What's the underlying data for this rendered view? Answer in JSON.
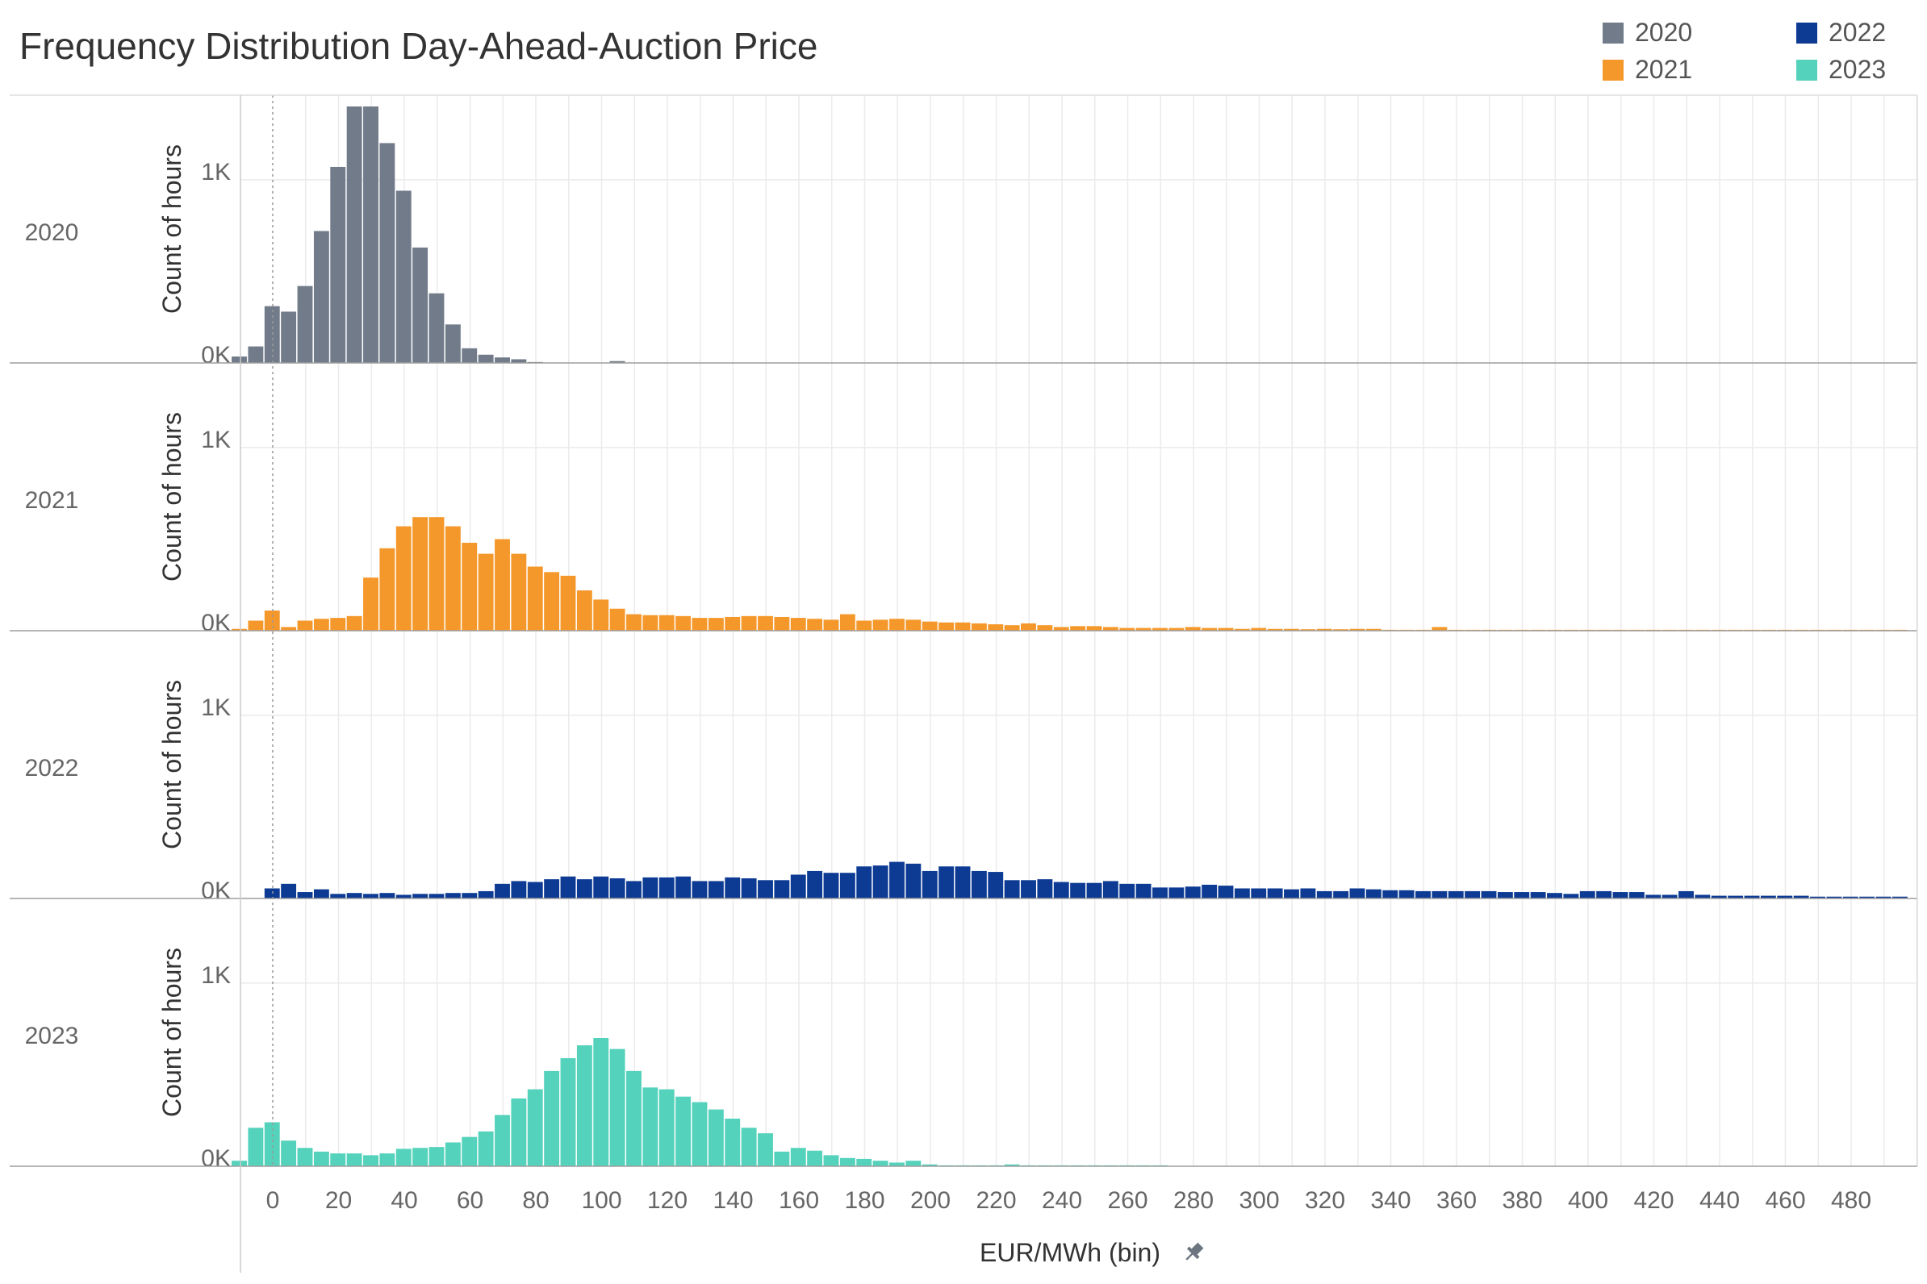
{
  "title": "Frequency Distribution Day-Ahead-Auction Price",
  "legend": [
    {
      "label": "2020",
      "color": "#727b8a"
    },
    {
      "label": "2021",
      "color": "#f5982b"
    },
    {
      "label": "2022",
      "color": "#0d3b94"
    },
    {
      "label": "2023",
      "color": "#54d2bb"
    }
  ],
  "chart_data": {
    "type": "bar",
    "title": "Frequency Distribution Day-Ahead-Auction Price",
    "xlabel": "EUR/MWh (bin)",
    "ylabel": "Count of hours",
    "bin_width": 5,
    "x_ticks": [
      0,
      20,
      40,
      60,
      80,
      100,
      120,
      140,
      160,
      180,
      200,
      220,
      240,
      260,
      280,
      300,
      320,
      340,
      360,
      380,
      400,
      420,
      440,
      460,
      480
    ],
    "y_ticks": [
      "0K",
      "1K"
    ],
    "y_tick_values": [
      0,
      1000
    ],
    "ylim": [
      0,
      1400
    ],
    "grid": true,
    "legend_position": "top-right",
    "series": [
      {
        "name": "2020",
        "color": "#727b8a",
        "x": [
          -10,
          -5,
          0,
          5,
          10,
          15,
          20,
          25,
          30,
          35,
          40,
          45,
          50,
          55,
          60,
          65,
          70,
          75,
          80,
          105
        ],
        "values": [
          35,
          90,
          310,
          280,
          420,
          720,
          1070,
          1400,
          1400,
          1200,
          940,
          630,
          380,
          210,
          80,
          45,
          30,
          20,
          5,
          10
        ]
      },
      {
        "name": "2021",
        "color": "#f5982b",
        "x": [
          -10,
          -5,
          0,
          5,
          10,
          15,
          20,
          25,
          30,
          35,
          40,
          45,
          50,
          55,
          60,
          65,
          70,
          75,
          80,
          85,
          90,
          95,
          100,
          105,
          110,
          115,
          120,
          125,
          130,
          135,
          140,
          145,
          150,
          155,
          160,
          165,
          170,
          175,
          180,
          185,
          190,
          195,
          200,
          205,
          210,
          215,
          220,
          225,
          230,
          235,
          240,
          245,
          250,
          255,
          260,
          265,
          270,
          275,
          280,
          285,
          290,
          295,
          300,
          305,
          310,
          315,
          320,
          325,
          330,
          335,
          340,
          345,
          350,
          355,
          360,
          365,
          370,
          375,
          380,
          385,
          390,
          395,
          400,
          405,
          410,
          415,
          420,
          425,
          430,
          435,
          440,
          445,
          450,
          455,
          460,
          465,
          470,
          475,
          480,
          485,
          490,
          495
        ],
        "values": [
          10,
          55,
          110,
          20,
          55,
          65,
          70,
          80,
          290,
          450,
          570,
          620,
          620,
          570,
          480,
          420,
          500,
          420,
          350,
          320,
          300,
          220,
          170,
          120,
          90,
          85,
          85,
          80,
          70,
          70,
          75,
          80,
          80,
          75,
          70,
          65,
          60,
          90,
          55,
          60,
          65,
          60,
          50,
          45,
          45,
          40,
          35,
          30,
          40,
          30,
          20,
          25,
          25,
          20,
          15,
          15,
          15,
          15,
          20,
          15,
          15,
          10,
          15,
          10,
          10,
          8,
          10,
          8,
          10,
          10,
          5,
          5,
          5,
          20,
          5,
          5,
          5,
          5,
          5,
          5,
          5,
          5,
          5,
          5,
          5,
          5,
          5,
          5,
          5,
          5,
          5,
          5,
          5,
          5,
          5,
          5,
          5,
          5,
          5,
          5,
          5,
          5
        ]
      },
      {
        "name": "2022",
        "color": "#0d3b94",
        "x": [
          0,
          5,
          10,
          15,
          20,
          25,
          30,
          35,
          40,
          45,
          50,
          55,
          60,
          65,
          70,
          75,
          80,
          85,
          90,
          95,
          100,
          105,
          110,
          115,
          120,
          125,
          130,
          135,
          140,
          145,
          150,
          155,
          160,
          165,
          170,
          175,
          180,
          185,
          190,
          195,
          200,
          205,
          210,
          215,
          220,
          225,
          230,
          235,
          240,
          245,
          250,
          255,
          260,
          265,
          270,
          275,
          280,
          285,
          290,
          295,
          300,
          305,
          310,
          315,
          320,
          325,
          330,
          335,
          340,
          345,
          350,
          355,
          360,
          365,
          370,
          375,
          380,
          385,
          390,
          395,
          400,
          405,
          410,
          415,
          420,
          425,
          430,
          435,
          440,
          445,
          450,
          455,
          460,
          465,
          470,
          475,
          480,
          485,
          490,
          495
        ],
        "values": [
          55,
          80,
          35,
          50,
          25,
          30,
          25,
          30,
          20,
          25,
          25,
          30,
          30,
          40,
          80,
          95,
          90,
          105,
          120,
          105,
          120,
          110,
          95,
          115,
          115,
          120,
          95,
          95,
          115,
          110,
          100,
          100,
          130,
          150,
          140,
          140,
          175,
          180,
          200,
          190,
          150,
          175,
          175,
          150,
          145,
          100,
          100,
          105,
          90,
          85,
          85,
          95,
          80,
          80,
          60,
          60,
          65,
          75,
          70,
          55,
          55,
          55,
          50,
          55,
          40,
          40,
          55,
          50,
          45,
          45,
          40,
          40,
          40,
          40,
          40,
          35,
          35,
          35,
          30,
          25,
          40,
          40,
          35,
          35,
          20,
          20,
          40,
          20,
          15,
          15,
          15,
          15,
          15,
          15,
          10,
          10,
          10,
          10,
          10,
          10
        ]
      },
      {
        "name": "2023",
        "color": "#54d2bb",
        "x": [
          -10,
          -5,
          0,
          5,
          10,
          15,
          20,
          25,
          30,
          35,
          40,
          45,
          50,
          55,
          60,
          65,
          70,
          75,
          80,
          85,
          90,
          95,
          100,
          105,
          110,
          115,
          120,
          125,
          130,
          135,
          140,
          145,
          150,
          155,
          160,
          165,
          170,
          175,
          180,
          185,
          190,
          195,
          200,
          205,
          210,
          215,
          220,
          225,
          230,
          235,
          240,
          245,
          250,
          255,
          260,
          265,
          270
        ],
        "values": [
          30,
          210,
          240,
          140,
          100,
          80,
          70,
          70,
          60,
          70,
          95,
          100,
          105,
          130,
          160,
          190,
          280,
          370,
          420,
          520,
          590,
          660,
          700,
          640,
          520,
          430,
          420,
          380,
          350,
          310,
          260,
          210,
          180,
          80,
          100,
          85,
          60,
          45,
          40,
          30,
          20,
          30,
          10,
          5,
          5,
          5,
          5,
          10,
          5,
          5,
          5,
          5,
          5,
          5,
          5,
          5,
          5
        ]
      }
    ]
  }
}
